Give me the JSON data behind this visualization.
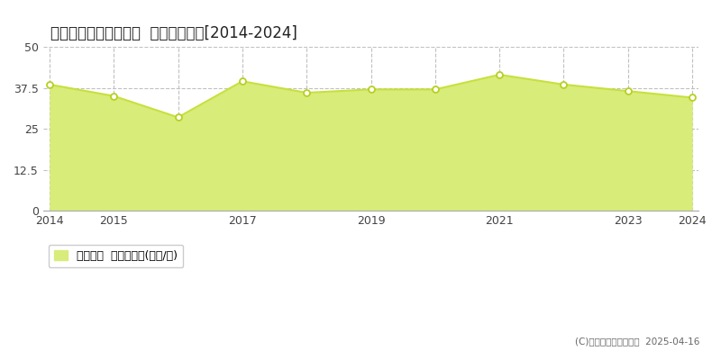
{
  "title": "足柄上郡開成町みなみ  土地価格推移[2014-2024]",
  "years": [
    2014,
    2015,
    2016,
    2017,
    2018,
    2019,
    2020,
    2021,
    2022,
    2023,
    2024
  ],
  "values": [
    38.5,
    35.0,
    28.5,
    39.5,
    36.0,
    37.0,
    37.0,
    41.5,
    38.5,
    36.5,
    34.5
  ],
  "ylim": [
    0,
    50
  ],
  "yticks": [
    0,
    12.5,
    25,
    37.5,
    50
  ],
  "xlim_start": 2014,
  "xlim_end": 2024,
  "line_color": "#c8e03c",
  "fill_color": "#d8ec7a",
  "fill_alpha": 1.0,
  "marker_color": "#ffffff",
  "marker_edge_color": "#b8d020",
  "grid_color": "#bbbbbb",
  "bg_color": "#ffffff",
  "plot_bg_color": "#f5f5f5",
  "legend_label": "土地価格  平均坪単価(万円/坪)",
  "copyright_text": "(C)土地価格ドットコム  2025-04-16",
  "xticks": [
    2014,
    2015,
    2016,
    2017,
    2018,
    2019,
    2020,
    2021,
    2022,
    2023,
    2024
  ],
  "xtick_labels": [
    "2014",
    "2015",
    "",
    "2017",
    "",
    "2019",
    "",
    "2021",
    "",
    "2023",
    "2024"
  ]
}
